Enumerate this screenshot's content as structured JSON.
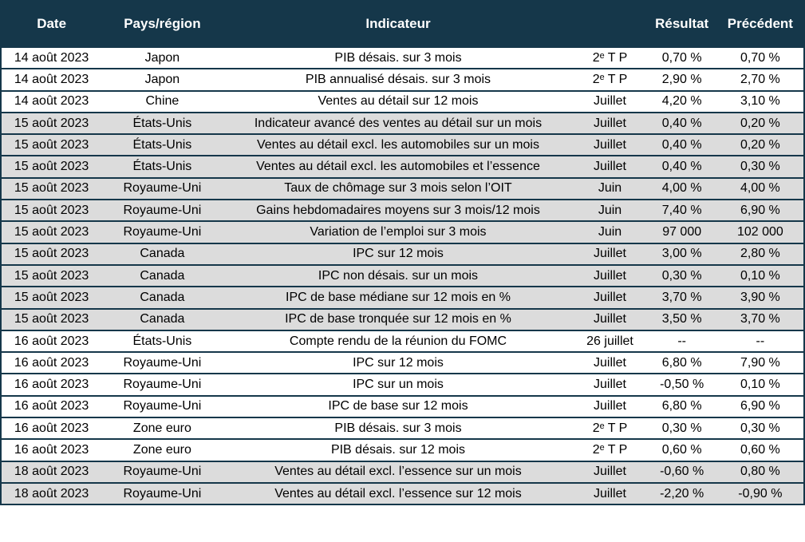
{
  "colors": {
    "header_bg": "#15374A",
    "border": "#15374A",
    "row_bg": "#FFFFFF",
    "row_shaded_bg": "#DCDCDC",
    "header_text": "#FFFFFF",
    "body_text": "#000000"
  },
  "table": {
    "columns": [
      {
        "label": "Date"
      },
      {
        "label": "Pays/région"
      },
      {
        "label": "Indicateur"
      },
      {
        "label": ""
      },
      {
        "label": "Résultat"
      },
      {
        "label": "Précédent"
      }
    ],
    "rows": [
      {
        "date": "14 août 2023",
        "region": "Japon",
        "indicateur": "PIB désais. sur 3 mois",
        "periode": "2ᵉ T P",
        "resultat": "0,70 %",
        "precedent": "0,70 %",
        "shaded": false
      },
      {
        "date": "14 août 2023",
        "region": "Japon",
        "indicateur": "PIB annualisé désais. sur 3 mois",
        "periode": "2ᵉ T P",
        "resultat": "2,90 %",
        "precedent": "2,70 %",
        "shaded": false
      },
      {
        "date": "14 août 2023",
        "region": "Chine",
        "indicateur": "Ventes au détail sur 12 mois",
        "periode": "Juillet",
        "resultat": "4,20 %",
        "precedent": "3,10 %",
        "shaded": false
      },
      {
        "date": "15 août 2023",
        "region": "États-Unis",
        "indicateur": "Indicateur avancé des ventes au détail sur un mois",
        "periode": "Juillet",
        "resultat": "0,40 %",
        "precedent": "0,20 %",
        "shaded": true
      },
      {
        "date": "15 août 2023",
        "region": "États-Unis",
        "indicateur": "Ventes au détail excl. les automobiles sur un mois",
        "periode": "Juillet",
        "resultat": "0,40 %",
        "precedent": "0,20 %",
        "shaded": true
      },
      {
        "date": "15 août 2023",
        "region": "États-Unis",
        "indicateur": "Ventes au détail excl. les automobiles et l’essence",
        "periode": "Juillet",
        "resultat": "0,40 %",
        "precedent": "0,30 %",
        "shaded": true
      },
      {
        "date": "15 août 2023",
        "region": "Royaume-Uni",
        "indicateur": "Taux de chômage sur 3 mois selon l’OIT",
        "periode": "Juin",
        "resultat": "4,00 %",
        "precedent": "4,00 %",
        "shaded": true
      },
      {
        "date": "15 août 2023",
        "region": "Royaume-Uni",
        "indicateur": "Gains hebdomadaires moyens sur 3 mois/12 mois",
        "periode": "Juin",
        "resultat": "7,40 %",
        "precedent": "6,90 %",
        "shaded": true
      },
      {
        "date": "15 août 2023",
        "region": "Royaume-Uni",
        "indicateur": "Variation de l’emploi sur 3 mois",
        "periode": "Juin",
        "resultat": "97 000",
        "precedent": "102 000",
        "shaded": true
      },
      {
        "date": "15 août 2023",
        "region": "Canada",
        "indicateur": "IPC sur 12 mois",
        "periode": "Juillet",
        "resultat": "3,00 %",
        "precedent": "2,80 %",
        "shaded": true
      },
      {
        "date": "15 août 2023",
        "region": "Canada",
        "indicateur": "IPC non désais. sur un mois",
        "periode": "Juillet",
        "resultat": "0,30 %",
        "precedent": "0,10 %",
        "shaded": true
      },
      {
        "date": "15 août 2023",
        "region": "Canada",
        "indicateur": "IPC de base médiane sur 12 mois en %",
        "periode": "Juillet",
        "resultat": "3,70 %",
        "precedent": "3,90 %",
        "shaded": true
      },
      {
        "date": "15 août 2023",
        "region": "Canada",
        "indicateur": "IPC de base tronquée sur 12 mois en %",
        "periode": "Juillet",
        "resultat": "3,50 %",
        "precedent": "3,70 %",
        "shaded": true
      },
      {
        "date": "16 août 2023",
        "region": "États-Unis",
        "indicateur": "Compte rendu de la réunion du FOMC",
        "periode": "26 juillet",
        "resultat": "--",
        "precedent": "--",
        "shaded": false
      },
      {
        "date": "16 août 2023",
        "region": "Royaume-Uni",
        "indicateur": "IPC sur 12 mois",
        "periode": "Juillet",
        "resultat": "6,80 %",
        "precedent": "7,90 %",
        "shaded": false
      },
      {
        "date": "16 août 2023",
        "region": "Royaume-Uni",
        "indicateur": "IPC sur un mois",
        "periode": "Juillet",
        "resultat": "-0,50 %",
        "precedent": "0,10 %",
        "shaded": false
      },
      {
        "date": "16 août 2023",
        "region": "Royaume-Uni",
        "indicateur": "IPC de base sur 12 mois",
        "periode": "Juillet",
        "resultat": "6,80 %",
        "precedent": "6,90 %",
        "shaded": false
      },
      {
        "date": "16 août 2023",
        "region": "Zone euro",
        "indicateur": "PIB désais. sur 3 mois",
        "periode": "2ᵉ T P",
        "resultat": "0,30 %",
        "precedent": "0,30 %",
        "shaded": false
      },
      {
        "date": "16 août 2023",
        "region": "Zone euro",
        "indicateur": "PIB désais. sur 12 mois",
        "periode": "2ᵉ T P",
        "resultat": "0,60 %",
        "precedent": "0,60 %",
        "shaded": false
      },
      {
        "date": "18 août 2023",
        "region": "Royaume-Uni",
        "indicateur": "Ventes au détail excl. l’essence sur un mois",
        "periode": "Juillet",
        "resultat": "-0,60 %",
        "precedent": "0,80 %",
        "shaded": true
      },
      {
        "date": "18 août 2023",
        "region": "Royaume-Uni",
        "indicateur": "Ventes au détail excl. l’essence sur 12 mois",
        "periode": "Juillet",
        "resultat": "-2,20 %",
        "precedent": "-0,90 %",
        "shaded": true
      }
    ]
  }
}
